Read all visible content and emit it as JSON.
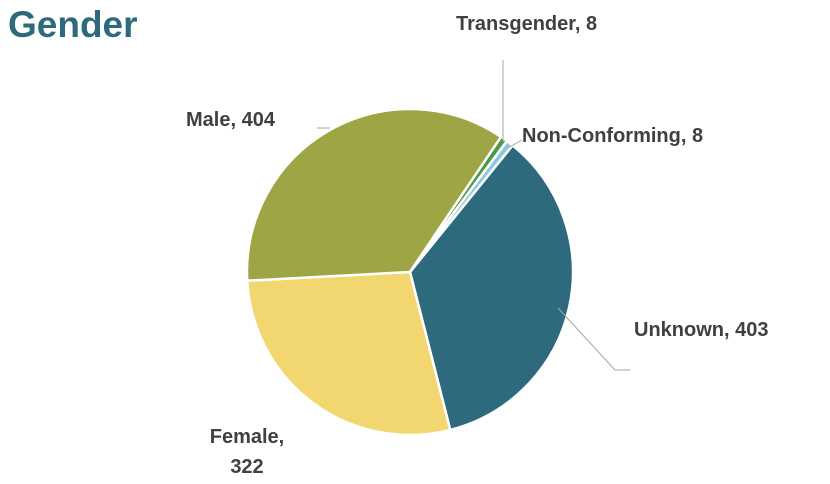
{
  "chart_data": {
    "type": "pie",
    "title": "Gender",
    "categories": [
      "Unknown",
      "Female",
      "Male",
      "Transgender",
      "Non-Conforming"
    ],
    "values": [
      403,
      322,
      404,
      8,
      8
    ],
    "value_labels": [
      "Unknown, 403",
      "Female, 322",
      "Male, 404",
      "Transgender, 8",
      "Non-Conforming, 8"
    ],
    "colors": [
      "#2e6a7d",
      "#f2d66f",
      "#9ea544",
      "#4e9a3f",
      "#8ec6e2"
    ]
  }
}
